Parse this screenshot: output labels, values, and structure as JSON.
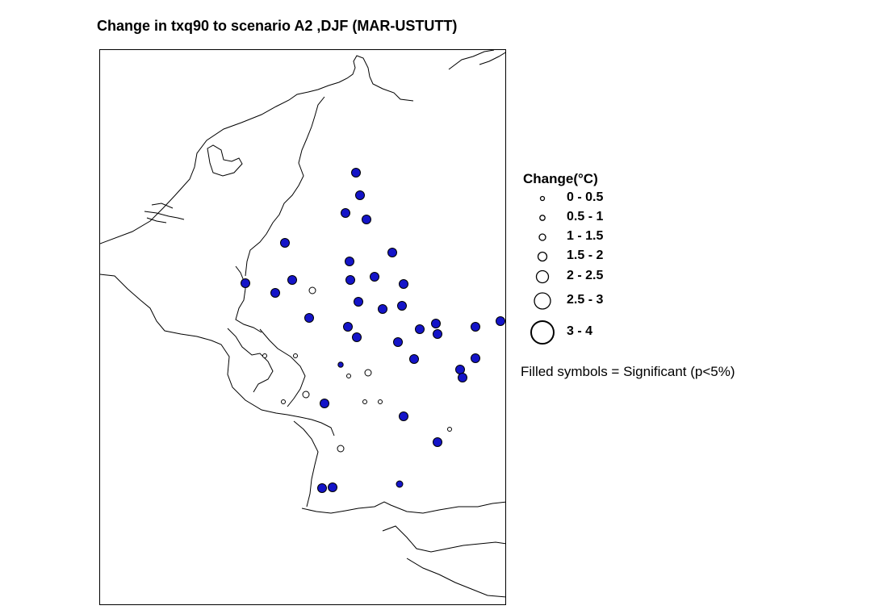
{
  "title": "Change in txq90 to scenario A2 ,DJF (MAR-USTUTT)",
  "legend": {
    "title": "Change(°C)",
    "classes": [
      {
        "label": "0 - 0.5"
      },
      {
        "label": "0.5 - 1"
      },
      {
        "label": "1 - 1.5"
      },
      {
        "label": "1.5 - 2"
      },
      {
        "label": "2 - 2.5"
      },
      {
        "label": "2.5 - 3"
      },
      {
        "label": "3 - 4"
      }
    ],
    "note": "Filled symbols = Significant (p<5%)"
  },
  "colors": {
    "significant_fill": "#1414c8",
    "outline": "#000000",
    "background": "#ffffff"
  },
  "stations": [
    {
      "class": 4,
      "significant": true
    },
    {
      "class": 4,
      "significant": true
    },
    {
      "class": 4,
      "significant": true
    },
    {
      "class": 4,
      "significant": true
    },
    {
      "class": 4,
      "significant": true
    },
    {
      "class": 4,
      "significant": true
    },
    {
      "class": 4,
      "significant": true
    },
    {
      "class": 4,
      "significant": true
    },
    {
      "class": 4,
      "significant": true
    },
    {
      "class": 4,
      "significant": true
    },
    {
      "class": 4,
      "significant": true
    },
    {
      "class": 4,
      "significant": true
    },
    {
      "class": 3,
      "significant": false
    },
    {
      "class": 4,
      "significant": true
    },
    {
      "class": 4,
      "significant": true
    },
    {
      "class": 4,
      "significant": true
    },
    {
      "class": 4,
      "significant": true
    },
    {
      "class": 4,
      "significant": true
    },
    {
      "class": 4,
      "significant": true
    },
    {
      "class": 4,
      "significant": true
    },
    {
      "class": 4,
      "significant": true
    },
    {
      "class": 4,
      "significant": true
    },
    {
      "class": 4,
      "significant": true
    },
    {
      "class": 4,
      "significant": true
    },
    {
      "class": 4,
      "significant": true
    },
    {
      "class": 4,
      "significant": true
    },
    {
      "class": 4,
      "significant": true
    },
    {
      "class": 1,
      "significant": false
    },
    {
      "class": 1,
      "significant": false
    },
    {
      "class": 2,
      "significant": true
    },
    {
      "class": 1,
      "significant": false
    },
    {
      "class": 3,
      "significant": false
    },
    {
      "class": 4,
      "significant": true
    },
    {
      "class": 4,
      "significant": true
    },
    {
      "class": 1,
      "significant": false
    },
    {
      "class": 3,
      "significant": false
    },
    {
      "class": 4,
      "significant": true
    },
    {
      "class": 1,
      "significant": false
    },
    {
      "class": 1,
      "significant": false
    },
    {
      "class": 1,
      "significant": false
    },
    {
      "class": 4,
      "significant": true
    },
    {
      "class": 1,
      "significant": false
    },
    {
      "class": 4,
      "significant": true
    },
    {
      "class": 4,
      "significant": true
    },
    {
      "class": 3,
      "significant": false
    },
    {
      "class": 4,
      "significant": true
    },
    {
      "class": 4,
      "significant": true
    },
    {
      "class": 3,
      "significant": true
    }
  ]
}
